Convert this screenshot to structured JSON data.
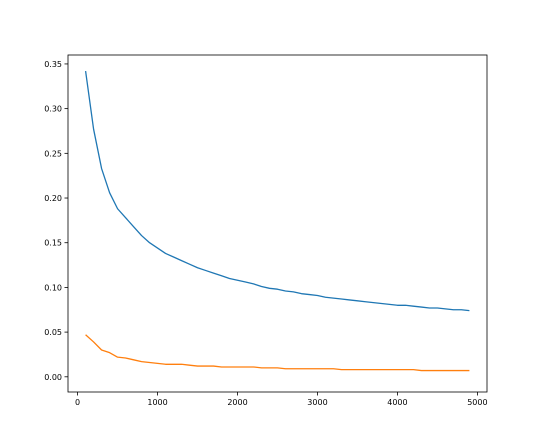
{
  "chart_data": {
    "type": "line",
    "title": "",
    "xlabel": "",
    "ylabel": "",
    "xlim": [
      -120,
      5120
    ],
    "ylim": [
      -0.017,
      0.36
    ],
    "x_ticks": [
      0,
      1000,
      2000,
      3000,
      4000,
      5000
    ],
    "x_tick_labels": [
      "0",
      "1000",
      "2000",
      "3000",
      "4000",
      "5000"
    ],
    "y_ticks": [
      0.0,
      0.05,
      0.1,
      0.15,
      0.2,
      0.25,
      0.3,
      0.35
    ],
    "y_tick_labels": [
      "0.00",
      "0.05",
      "0.10",
      "0.15",
      "0.20",
      "0.25",
      "0.30",
      "0.35"
    ],
    "grid": false,
    "legend": "none",
    "series": [
      {
        "color": "#1f77b4",
        "x": [
          100,
          200,
          300,
          400,
          500,
          600,
          700,
          800,
          900,
          1000,
          1100,
          1200,
          1300,
          1400,
          1500,
          1600,
          1700,
          1800,
          1900,
          2000,
          2100,
          2200,
          2300,
          2400,
          2500,
          2600,
          2700,
          2800,
          2900,
          3000,
          3100,
          3200,
          3300,
          3400,
          3500,
          3600,
          3700,
          3800,
          3900,
          4000,
          4100,
          4200,
          4300,
          4400,
          4500,
          4600,
          4700,
          4800,
          4900
        ],
        "values": [
          0.342,
          0.277,
          0.233,
          0.206,
          0.188,
          0.178,
          0.168,
          0.158,
          0.15,
          0.144,
          0.138,
          0.134,
          0.13,
          0.126,
          0.122,
          0.119,
          0.116,
          0.113,
          0.11,
          0.108,
          0.106,
          0.104,
          0.101,
          0.099,
          0.098,
          0.096,
          0.095,
          0.093,
          0.092,
          0.091,
          0.089,
          0.088,
          0.087,
          0.086,
          0.085,
          0.084,
          0.083,
          0.082,
          0.081,
          0.08,
          0.08,
          0.079,
          0.078,
          0.077,
          0.077,
          0.076,
          0.075,
          0.075,
          0.074
        ]
      },
      {
        "color": "#ff7f0e",
        "x": [
          100,
          200,
          300,
          400,
          500,
          600,
          700,
          800,
          900,
          1000,
          1100,
          1200,
          1300,
          1400,
          1500,
          1600,
          1700,
          1800,
          1900,
          2000,
          2100,
          2200,
          2300,
          2400,
          2500,
          2600,
          2700,
          2800,
          2900,
          3000,
          3100,
          3200,
          3300,
          3400,
          3500,
          3600,
          3700,
          3800,
          3900,
          4000,
          4100,
          4200,
          4300,
          4400,
          4500,
          4600,
          4700,
          4800,
          4900
        ],
        "values": [
          0.047,
          0.039,
          0.03,
          0.027,
          0.022,
          0.021,
          0.019,
          0.017,
          0.016,
          0.015,
          0.014,
          0.014,
          0.014,
          0.013,
          0.012,
          0.012,
          0.012,
          0.011,
          0.011,
          0.011,
          0.011,
          0.011,
          0.01,
          0.01,
          0.01,
          0.009,
          0.009,
          0.009,
          0.009,
          0.009,
          0.009,
          0.009,
          0.008,
          0.008,
          0.008,
          0.008,
          0.008,
          0.008,
          0.008,
          0.008,
          0.008,
          0.008,
          0.007,
          0.007,
          0.007,
          0.007,
          0.007,
          0.007,
          0.007
        ]
      }
    ]
  }
}
